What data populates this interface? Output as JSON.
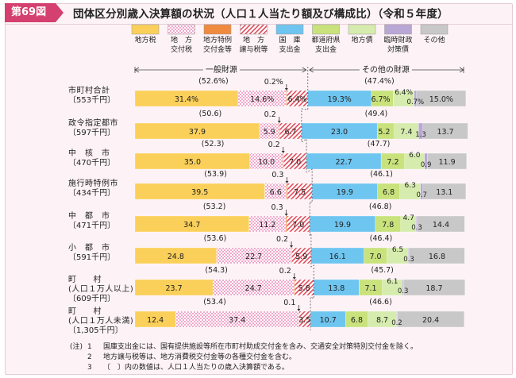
{
  "header": {
    "figure_label": "第69図",
    "title": "団体区分別歳入決算額の状況（人口１人当たり額及び構成比）（令和５年度）"
  },
  "legend": [
    {
      "label": "地方税",
      "color": "#fbd05a",
      "pattern": "solid"
    },
    {
      "label": "地　方\n交付税",
      "color": "#ffffff",
      "pattern": "pink-dots"
    },
    {
      "label": "地方特例\n交付金等",
      "color": "#f08a3e",
      "pattern": "solid"
    },
    {
      "label": "地　方\n譲与税等",
      "color": "#ffffff",
      "pattern": "red-hatch"
    },
    {
      "label": "国　庫\n支出金",
      "color": "#6ec5f0",
      "pattern": "solid"
    },
    {
      "label": "都道府県\n支出金",
      "color": "#c9e27c",
      "pattern": "solid"
    },
    {
      "label": "地方債",
      "color": "#d6ecae",
      "pattern": "solid"
    },
    {
      "label": "臨時財政\n対策債",
      "color": "#b9a8d6",
      "pattern": "solid"
    },
    {
      "label": "その他",
      "color": "#c8c8c8",
      "pattern": "solid"
    }
  ],
  "brackets": {
    "general": "一般財源",
    "other": "その他の財源"
  },
  "chart_data": {
    "type": "bar",
    "orientation": "horizontal",
    "stacked": true,
    "x_unit": "%",
    "categories": [
      {
        "name": "市町村合計",
        "per_capita": "〔553千円〕",
        "general_pct": "(52.6%)",
        "other_pct": "(47.4%)",
        "tokurei_label": "0.2%"
      },
      {
        "name": "政令指定都市",
        "per_capita": "〔597千円〕",
        "general_pct": "(50.6)",
        "other_pct": "(49.4)",
        "tokurei_label": "0.2"
      },
      {
        "name": "中　核　市",
        "per_capita": "〔470千円〕",
        "general_pct": "(52.3)",
        "other_pct": "(47.7)",
        "tokurei_label": "0.2"
      },
      {
        "name": "施行時特例市",
        "per_capita": "〔434千円〕",
        "general_pct": "(53.9)",
        "other_pct": "(46.1)",
        "tokurei_label": "0.3"
      },
      {
        "name": "中　都　市",
        "per_capita": "〔471千円〕",
        "general_pct": "(53.2)",
        "other_pct": "(46.8)",
        "tokurei_label": "0.3"
      },
      {
        "name": "小　都　市",
        "per_capita": "〔591千円〕",
        "general_pct": "(53.6)",
        "other_pct": "(46.4)",
        "tokurei_label": "0.2"
      },
      {
        "name": "町　　村\n(人口１万人以上)",
        "per_capita": "〔609千円〕",
        "general_pct": "(54.3)",
        "other_pct": "(45.7)",
        "tokurei_label": "0.2"
      },
      {
        "name": "町　　村\n(人口１万人未満)",
        "per_capita": "〔1,305千円〕",
        "general_pct": "(53.4)",
        "other_pct": "(46.6)",
        "tokurei_label": "0.1"
      }
    ],
    "series": [
      {
        "name": "地方税",
        "values": [
          31.4,
          37.9,
          35.0,
          39.5,
          34.7,
          24.8,
          23.7,
          12.4
        ],
        "labels": [
          "31.4%",
          "37.9",
          "35.0",
          "39.5",
          "34.7",
          "24.8",
          "23.7",
          "12.4"
        ]
      },
      {
        "name": "地方交付税",
        "values": [
          14.6,
          5.9,
          10.0,
          6.6,
          11.2,
          22.7,
          24.7,
          37.4
        ],
        "labels": [
          "14.6%",
          "5.9",
          "10.0",
          "6.6",
          "11.2",
          "22.7",
          "24.7",
          "37.4"
        ]
      },
      {
        "name": "地方特例交付金等",
        "values": [
          0.2,
          0.2,
          0.2,
          0.3,
          0.3,
          0.2,
          0.2,
          0.1
        ],
        "labels": [
          "",
          "",
          "",
          "",
          "",
          "",
          "",
          ""
        ]
      },
      {
        "name": "地方譲与税等",
        "values": [
          6.4,
          6.7,
          7.0,
          7.5,
          7.0,
          5.9,
          5.8,
          3.5
        ],
        "labels": [
          "6.4%",
          "6.7",
          "7.0",
          "7.5",
          "7.0",
          "5.9",
          "5.8",
          "3.5"
        ]
      },
      {
        "name": "国庫支出金",
        "values": [
          19.3,
          23.0,
          22.7,
          19.9,
          19.9,
          16.1,
          13.8,
          10.7
        ],
        "labels": [
          "19.3%",
          "23.0",
          "22.7",
          "19.9",
          "19.9",
          "16.1",
          "13.8",
          "10.7"
        ]
      },
      {
        "name": "都道府県支出金",
        "values": [
          6.7,
          5.2,
          7.2,
          6.8,
          7.8,
          7.0,
          7.1,
          6.8
        ],
        "labels": [
          "6.7%",
          "5.2",
          "7.2",
          "6.8",
          "7.8",
          "7.0",
          "7.1",
          "6.8"
        ]
      },
      {
        "name": "地方債",
        "values": [
          6.4,
          7.4,
          6.0,
          6.3,
          4.7,
          6.5,
          6.1,
          8.7
        ],
        "labels": [
          "6.4%",
          "7.4",
          "6.0",
          "6.3",
          "4.7",
          "6.5",
          "6.1",
          "8.7"
        ]
      },
      {
        "name": "臨時財政対策債",
        "values": [
          0.7,
          1.3,
          0.9,
          0.7,
          0.3,
          0.3,
          0.3,
          0.2
        ],
        "labels": [
          "0.7%",
          "1.3",
          "0.9",
          "0.7",
          "0.3",
          "0.3",
          "0.3",
          "0.2"
        ]
      },
      {
        "name": "その他",
        "values": [
          15.0,
          13.7,
          11.9,
          13.1,
          14.4,
          16.8,
          18.7,
          20.4
        ],
        "labels": [
          "15.0%",
          "13.7",
          "11.9",
          "13.1",
          "14.4",
          "16.8",
          "18.7",
          "20.4"
        ]
      }
    ]
  },
  "notes": [
    {
      "lead": "(注)",
      "num": "1",
      "text": "国庫支出金には、国有提供施設等所在市町村助成交付金を含み、交通安全対策特別交付金を除く。"
    },
    {
      "lead": "",
      "num": "2",
      "text": "地方譲与税等は、地方消費税交付金等の各種交付金を含む。"
    },
    {
      "lead": "",
      "num": "3",
      "text": "〔　〕内の数値は、人口１人当たりの歳入決算額である。"
    }
  ]
}
